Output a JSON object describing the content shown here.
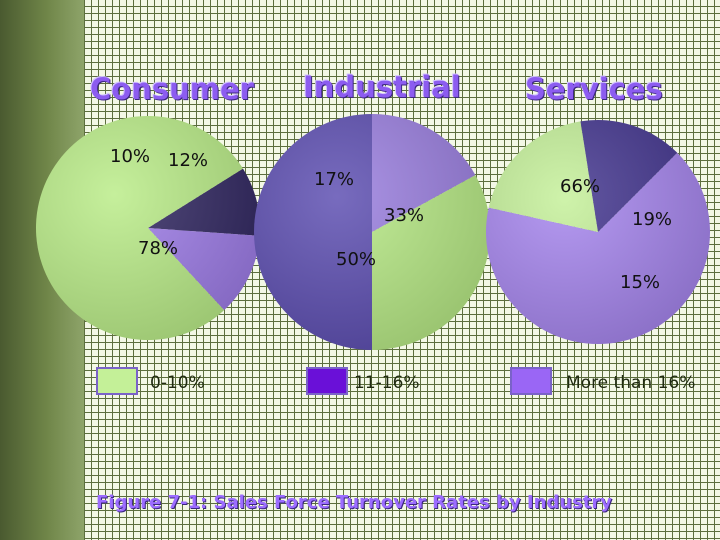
{
  "chart_data": [
    {
      "type": "pie",
      "title": "Consumer",
      "slices": [
        {
          "label": "10%",
          "value": 10,
          "color": "#2f2560"
        },
        {
          "label": "12%",
          "value": 12,
          "color": "#9d7be8"
        },
        {
          "label": "78%",
          "value": 78,
          "color": "#b9ec86"
        }
      ]
    },
    {
      "type": "pie",
      "title": "Industrial",
      "slices": [
        {
          "label": "17%",
          "value": 17,
          "color": "#9a7ee0"
        },
        {
          "label": "33%",
          "value": 33,
          "color": "#b7ea84"
        },
        {
          "label": "50%",
          "value": 50,
          "color": "#5a4bb0"
        }
      ]
    },
    {
      "type": "pie",
      "title": "Services",
      "slices": [
        {
          "label": "66%",
          "value": 66,
          "color": "#a584ee"
        },
        {
          "label": "19%",
          "value": 19,
          "color": "#c4f098"
        },
        {
          "label": "15%",
          "value": 15,
          "color": "#41338e"
        }
      ]
    }
  ],
  "legend": [
    {
      "label": "0-10%",
      "color": "#c4f098"
    },
    {
      "label": "11-16%",
      "color": "#6a10d8"
    },
    {
      "label": "More than 16%",
      "color": "#9a66f5"
    }
  ],
  "caption": "Figure 7-1: Sales Force Turnover Rates by Industry"
}
